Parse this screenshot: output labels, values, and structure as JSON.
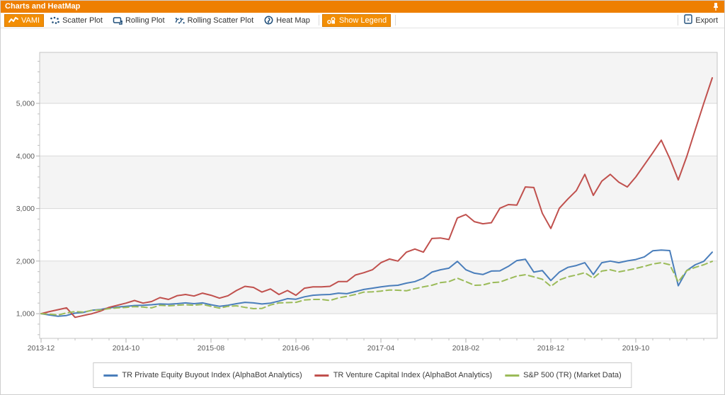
{
  "window": {
    "title": "Charts and HeatMap"
  },
  "toolbar": {
    "buttons": [
      {
        "label": "VAMI",
        "active": true,
        "icon": "line-chart-icon"
      },
      {
        "label": "Scatter Plot",
        "active": false,
        "icon": "scatter-icon"
      },
      {
        "label": "Rolling Plot",
        "active": false,
        "icon": "rolling-plot-icon"
      },
      {
        "label": "Rolling Scatter Plot",
        "active": false,
        "icon": "rolling-scatter-icon"
      },
      {
        "label": "Heat Map",
        "active": false,
        "icon": "heatmap-icon"
      },
      {
        "label": "Show Legend",
        "active": true,
        "icon": "legend-icon"
      }
    ],
    "export_label": "Export",
    "export_icon_letter": "x"
  },
  "colors": {
    "accent_orange": "#ee7f01",
    "active_button_orange": "#f28e05",
    "icon_navy": "#1f4e79",
    "grid_line": "#d9d9d9",
    "band_fill": "#f4f4f4",
    "axis_text": "#595959"
  },
  "chart_data": {
    "type": "line",
    "title": "",
    "x_unit": "month",
    "n_points": 80,
    "x_tick_labels": [
      "2013-12",
      "2014-10",
      "2015-08",
      "2016-06",
      "2017-04",
      "2018-02",
      "2018-12",
      "2019-10"
    ],
    "x_tick_indices": [
      0,
      10,
      20,
      30,
      40,
      50,
      60,
      70
    ],
    "y_ticks": [
      1000,
      2000,
      3000,
      4000,
      5000
    ],
    "y_tick_labels": [
      "1,000",
      "2,000",
      "3,000",
      "4,000",
      "5,000"
    ],
    "ylim": [
      530,
      5970
    ],
    "grid": "horizontal",
    "legend_position": "bottom",
    "series": [
      {
        "name": "TR Private Equity Buyout Index (AlphaBot Analytics)",
        "color": "#4a7ebb",
        "dash": "solid",
        "values": [
          1000,
          975,
          950,
          965,
          1010,
          1025,
          1065,
          1080,
          1110,
          1125,
          1140,
          1155,
          1160,
          1170,
          1185,
          1180,
          1190,
          1205,
          1190,
          1205,
          1170,
          1140,
          1160,
          1190,
          1215,
          1205,
          1185,
          1200,
          1240,
          1285,
          1275,
          1320,
          1350,
          1360,
          1365,
          1390,
          1380,
          1420,
          1460,
          1485,
          1510,
          1530,
          1540,
          1580,
          1610,
          1675,
          1790,
          1835,
          1865,
          1995,
          1835,
          1770,
          1745,
          1810,
          1815,
          1900,
          2010,
          2035,
          1790,
          1820,
          1630,
          1790,
          1880,
          1915,
          1970,
          1745,
          1970,
          2000,
          1970,
          2005,
          2030,
          2080,
          2195,
          2210,
          2200,
          1530,
          1820,
          1930,
          1995,
          2170
        ]
      },
      {
        "name": "TR Venture Capital Index (AlphaBot Analytics)",
        "color": "#c0504d",
        "dash": "solid",
        "values": [
          1000,
          1040,
          1075,
          1110,
          930,
          965,
          1000,
          1050,
          1120,
          1160,
          1200,
          1250,
          1200,
          1230,
          1305,
          1270,
          1340,
          1365,
          1335,
          1390,
          1350,
          1295,
          1340,
          1440,
          1520,
          1500,
          1410,
          1470,
          1365,
          1440,
          1350,
          1485,
          1510,
          1510,
          1520,
          1610,
          1610,
          1735,
          1780,
          1835,
          1970,
          2040,
          2000,
          2170,
          2230,
          2170,
          2430,
          2440,
          2410,
          2820,
          2885,
          2750,
          2710,
          2730,
          3005,
          3075,
          3065,
          3410,
          3400,
          2910,
          2620,
          3005,
          3180,
          3340,
          3650,
          3250,
          3520,
          3650,
          3500,
          3410,
          3600,
          3830,
          4060,
          4300,
          3950,
          3545,
          3990,
          4500,
          5000,
          5485
        ]
      },
      {
        "name": "S&P 500 (TR) (Market Data)",
        "color": "#9bbb59",
        "dash": "dashed",
        "values": [
          1000,
          990,
          975,
          1015,
          1040,
          1030,
          1065,
          1070,
          1095,
          1110,
          1120,
          1135,
          1125,
          1110,
          1160,
          1150,
          1160,
          1170,
          1160,
          1175,
          1140,
          1105,
          1140,
          1150,
          1120,
          1095,
          1100,
          1165,
          1205,
          1210,
          1215,
          1260,
          1270,
          1270,
          1250,
          1300,
          1330,
          1365,
          1410,
          1415,
          1430,
          1450,
          1445,
          1435,
          1475,
          1510,
          1540,
          1590,
          1610,
          1675,
          1610,
          1540,
          1545,
          1590,
          1600,
          1660,
          1715,
          1740,
          1700,
          1655,
          1520,
          1640,
          1700,
          1735,
          1780,
          1675,
          1810,
          1835,
          1795,
          1825,
          1860,
          1900,
          1945,
          1970,
          1930,
          1605,
          1820,
          1880,
          1930,
          1995
        ]
      }
    ]
  }
}
